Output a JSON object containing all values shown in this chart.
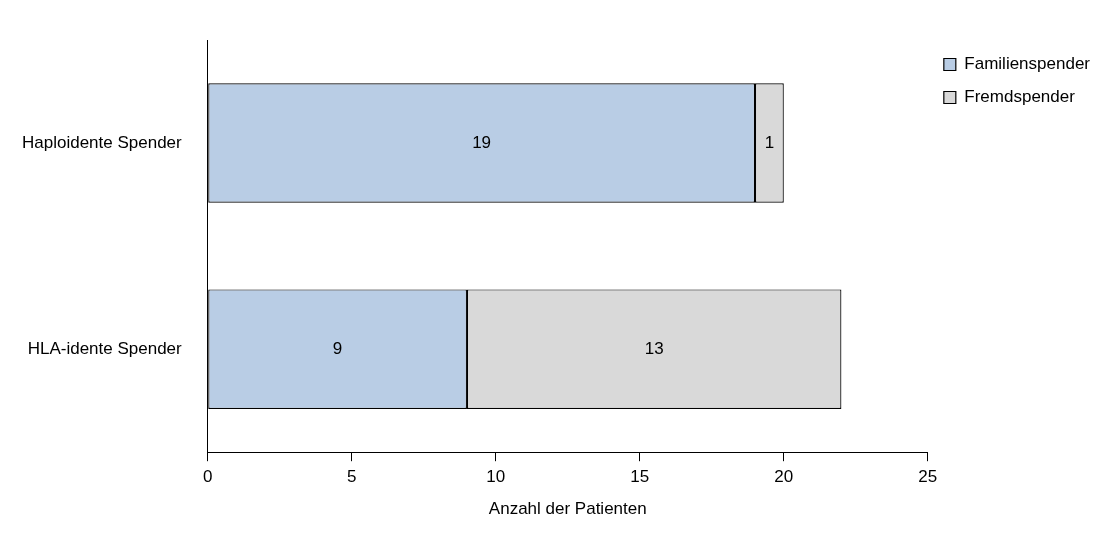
{
  "chart_data": {
    "type": "bar",
    "orientation": "horizontal",
    "stacked": true,
    "xlabel": "Anzahl der Patienten",
    "categories": [
      "Haploidente Spender",
      "HLA-idente Spender"
    ],
    "series": [
      {
        "name": "Familienspender",
        "color": "#b9cde5",
        "values": [
          19,
          9
        ]
      },
      {
        "name": "Fremdspender",
        "color": "#d9d9d9",
        "values": [
          1,
          13
        ]
      }
    ],
    "xlim": [
      0,
      25
    ],
    "xticks": [
      0,
      5,
      10,
      15,
      20,
      25
    ],
    "data_labels": true,
    "legend": "top right"
  }
}
